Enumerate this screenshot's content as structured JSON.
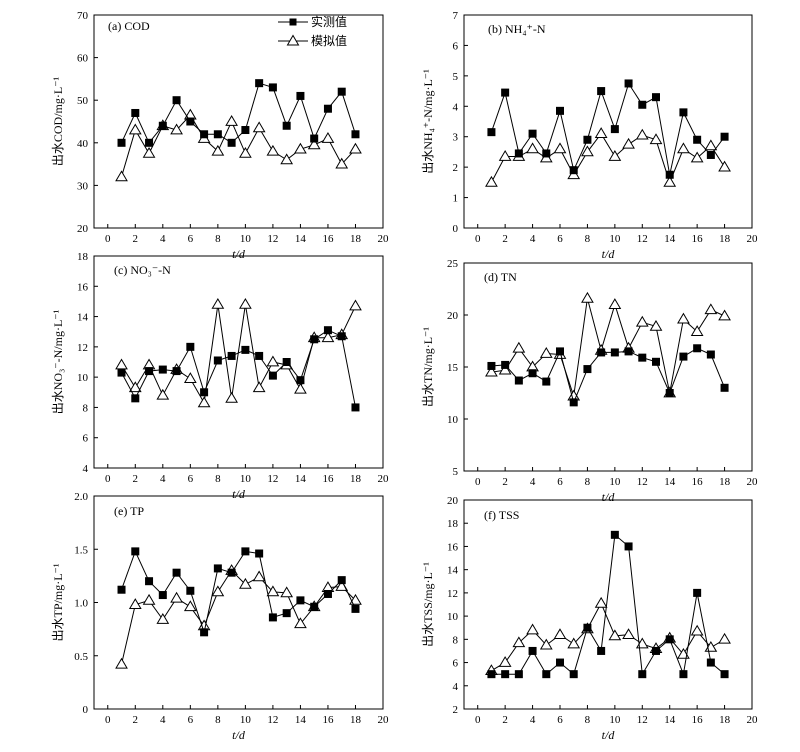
{
  "figure": {
    "xlabel": "t/d",
    "legend": {
      "measured": "实测值",
      "simulated": "模拟值"
    }
  },
  "chart_data": [
    {
      "type": "line",
      "panel_label": "(a) COD",
      "ylabel": "出水COD/mg·L⁻¹",
      "xlim": [
        -1,
        20
      ],
      "xticks": [
        0,
        2,
        4,
        6,
        8,
        10,
        12,
        14,
        16,
        18,
        20
      ],
      "ylim": [
        20,
        70
      ],
      "yticks": [
        20,
        30,
        40,
        50,
        60,
        70
      ],
      "x": [
        1,
        2,
        3,
        4,
        5,
        6,
        7,
        8,
        9,
        10,
        11,
        12,
        13,
        14,
        15,
        16,
        17,
        18
      ],
      "series": [
        {
          "name": "实测值",
          "marker": "square",
          "values": [
            40,
            47,
            40,
            44,
            50,
            45,
            42,
            42,
            40,
            43,
            54,
            53,
            44,
            51,
            41,
            48,
            52,
            42
          ]
        },
        {
          "name": "模拟值",
          "marker": "triangle",
          "values": [
            32,
            43,
            37.5,
            44,
            43,
            46.5,
            41,
            38,
            45,
            37.5,
            43.5,
            38,
            36,
            38.5,
            39.5,
            41,
            35,
            38.5
          ]
        }
      ],
      "legend_position": "top-center"
    },
    {
      "type": "line",
      "panel_label": "(b) NH₄⁺-N",
      "ylabel": "出水NH₄⁺-N/mg·L⁻¹",
      "xlim": [
        -1,
        20
      ],
      "xticks": [
        0,
        2,
        4,
        6,
        8,
        10,
        12,
        14,
        16,
        18,
        20
      ],
      "ylim": [
        0,
        7
      ],
      "yticks": [
        0,
        1,
        2,
        3,
        4,
        5,
        6,
        7
      ],
      "x": [
        1,
        2,
        3,
        4,
        5,
        6,
        7,
        8,
        9,
        10,
        11,
        12,
        13,
        14,
        15,
        16,
        17,
        18
      ],
      "series": [
        {
          "name": "实测值",
          "marker": "square",
          "values": [
            3.15,
            4.45,
            2.45,
            3.1,
            2.45,
            3.85,
            1.9,
            2.9,
            4.5,
            3.25,
            4.75,
            4.05,
            4.3,
            1.75,
            3.8,
            2.9,
            2.4,
            3.0
          ]
        },
        {
          "name": "模拟值",
          "marker": "triangle",
          "values": [
            1.5,
            2.35,
            2.35,
            2.6,
            2.3,
            2.6,
            1.75,
            2.5,
            3.1,
            2.35,
            2.75,
            3.05,
            2.9,
            1.5,
            2.6,
            2.3,
            2.7,
            2.0
          ]
        }
      ]
    },
    {
      "type": "line",
      "panel_label": "(c) NO₃⁻-N",
      "ylabel": "出水NO₃⁻-N/mg·L⁻¹",
      "xlim": [
        -1,
        20
      ],
      "xticks": [
        0,
        2,
        4,
        6,
        8,
        10,
        12,
        14,
        16,
        18,
        20
      ],
      "ylim": [
        4,
        18
      ],
      "yticks": [
        4,
        6,
        8,
        10,
        12,
        14,
        16,
        18
      ],
      "x": [
        1,
        2,
        3,
        4,
        5,
        6,
        7,
        8,
        9,
        10,
        11,
        12,
        13,
        14,
        15,
        16,
        17,
        18
      ],
      "series": [
        {
          "name": "实测值",
          "marker": "square",
          "values": [
            10.3,
            8.6,
            10.4,
            10.5,
            10.4,
            12.0,
            9.0,
            11.1,
            11.4,
            11.8,
            11.4,
            10.1,
            11.0,
            9.8,
            12.5,
            13.1,
            12.7,
            8.0
          ]
        },
        {
          "name": "模拟值",
          "marker": "triangle",
          "values": [
            10.8,
            9.3,
            10.8,
            8.8,
            10.5,
            9.9,
            8.3,
            14.8,
            8.6,
            14.8,
            9.3,
            11.0,
            10.8,
            9.2,
            12.6,
            12.6,
            12.8,
            14.7
          ]
        }
      ]
    },
    {
      "type": "line",
      "panel_label": "(d) TN",
      "ylabel": "出水TN/mg·L⁻¹",
      "xlim": [
        -1,
        20
      ],
      "xticks": [
        0,
        2,
        4,
        6,
        8,
        10,
        12,
        14,
        16,
        18,
        20
      ],
      "ylim": [
        5,
        25
      ],
      "yticks": [
        5,
        10,
        15,
        20,
        25
      ],
      "x": [
        1,
        2,
        3,
        4,
        5,
        6,
        7,
        8,
        9,
        10,
        11,
        12,
        13,
        14,
        15,
        16,
        17,
        18
      ],
      "series": [
        {
          "name": "实测值",
          "marker": "square",
          "values": [
            15.1,
            15.2,
            13.7,
            14.4,
            13.6,
            16.5,
            11.6,
            14.8,
            16.4,
            16.4,
            16.5,
            15.9,
            15.5,
            12.5,
            16.0,
            16.8,
            16.2,
            13.0
          ]
        },
        {
          "name": "模拟值",
          "marker": "triangle",
          "values": [
            14.5,
            14.7,
            16.8,
            15.0,
            16.3,
            16.2,
            12.2,
            21.6,
            16.6,
            21.0,
            16.8,
            19.3,
            18.9,
            12.5,
            19.6,
            18.4,
            20.5,
            19.9
          ]
        }
      ]
    },
    {
      "type": "line",
      "panel_label": "(e) TP",
      "ylabel": "出水TP/mg·L⁻¹",
      "xlim": [
        -1,
        20
      ],
      "xticks": [
        0,
        2,
        4,
        6,
        8,
        10,
        12,
        14,
        16,
        18,
        20
      ],
      "ylim": [
        0,
        2.0
      ],
      "yticks": [
        0,
        0.5,
        1.0,
        1.5,
        2.0
      ],
      "ytick_labels": [
        "0",
        "0.5",
        "1.0",
        "1.5",
        "2.0"
      ],
      "x": [
        1,
        2,
        3,
        4,
        5,
        6,
        7,
        8,
        9,
        10,
        11,
        12,
        13,
        14,
        15,
        16,
        17,
        18
      ],
      "series": [
        {
          "name": "实测值",
          "marker": "square",
          "values": [
            1.12,
            1.48,
            1.2,
            1.07,
            1.28,
            1.11,
            0.72,
            1.32,
            1.28,
            1.48,
            1.46,
            0.86,
            0.9,
            1.02,
            0.96,
            1.08,
            1.21,
            0.94
          ]
        },
        {
          "name": "模拟值",
          "marker": "triangle",
          "values": [
            0.42,
            0.98,
            1.02,
            0.84,
            1.04,
            0.96,
            0.78,
            1.1,
            1.3,
            1.17,
            1.24,
            1.1,
            1.09,
            0.8,
            0.96,
            1.14,
            1.15,
            1.02
          ]
        }
      ]
    },
    {
      "type": "line",
      "panel_label": "(f) TSS",
      "ylabel": "出水TSS/mg·L⁻¹",
      "xlim": [
        -1,
        20
      ],
      "xticks": [
        0,
        2,
        4,
        6,
        8,
        10,
        12,
        14,
        16,
        18,
        20
      ],
      "ylim": [
        2,
        20
      ],
      "yticks": [
        2,
        4,
        6,
        8,
        10,
        12,
        14,
        16,
        18,
        20
      ],
      "x": [
        1,
        2,
        3,
        4,
        5,
        6,
        7,
        8,
        9,
        10,
        11,
        12,
        13,
        14,
        15,
        16,
        17,
        18
      ],
      "series": [
        {
          "name": "实测值",
          "marker": "square",
          "values": [
            5,
            5,
            5,
            7,
            5,
            6,
            5,
            9,
            7,
            17,
            16,
            5,
            7,
            8,
            5,
            12,
            6,
            5
          ]
        },
        {
          "name": "模拟值",
          "marker": "triangle",
          "values": [
            5.3,
            6,
            7.7,
            8.8,
            7.5,
            8.4,
            7.6,
            8.9,
            11.1,
            8.3,
            8.4,
            7.6,
            7.2,
            8.1,
            6.7,
            8.7,
            7.3,
            8.0
          ]
        }
      ]
    }
  ]
}
